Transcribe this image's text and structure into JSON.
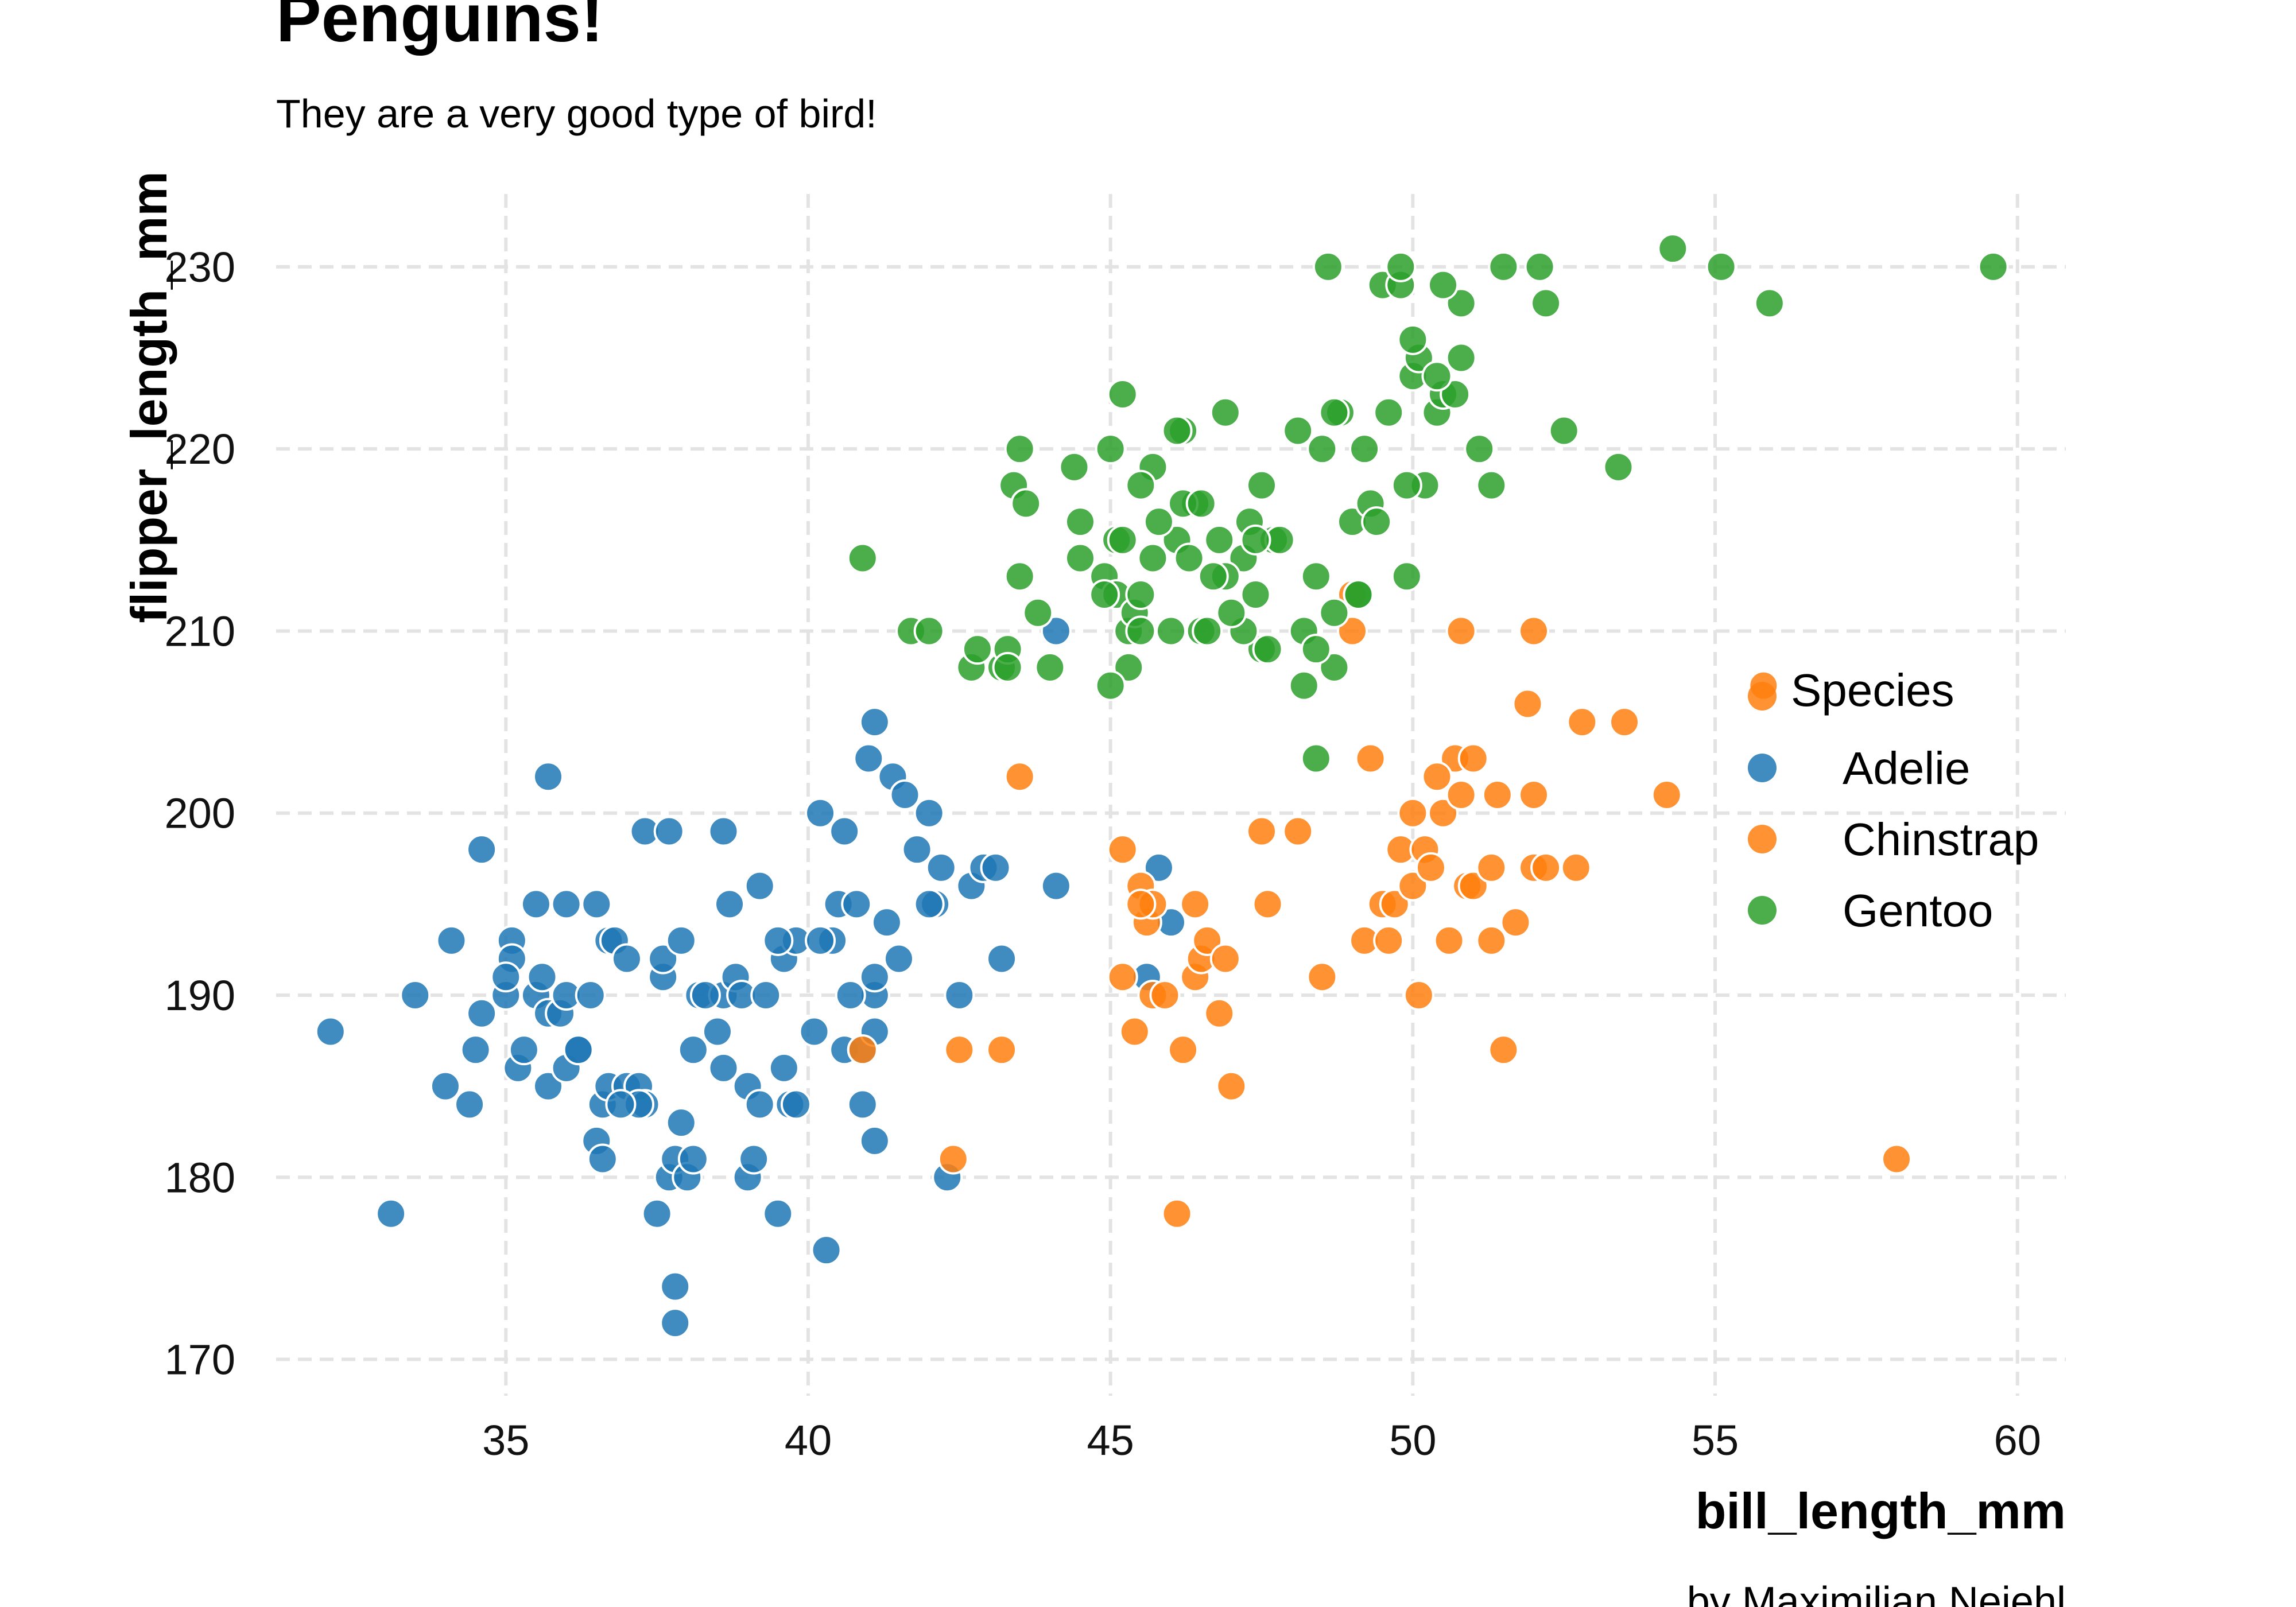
{
  "chart_data": {
    "type": "scatter",
    "title": "Penguins!",
    "subtitle": "They are a very good type of bird!",
    "caption": "by Maximilian Nejehl",
    "xlabel": "bill_length_mm",
    "ylabel": "flipper_length_mm",
    "xlim": [
      31.2,
      60.8
    ],
    "ylim": [
      168,
      234
    ],
    "xticks": [
      35,
      40,
      45,
      50,
      55,
      60
    ],
    "yticks": [
      170,
      180,
      190,
      200,
      210,
      220,
      230
    ],
    "grid": true,
    "legend": {
      "title": "Species",
      "position": "right"
    },
    "series": [
      {
        "name": "Adelie",
        "color": "#1f77b4",
        "points": [
          [
            32.1,
            188
          ],
          [
            33.1,
            178
          ],
          [
            33.5,
            190
          ],
          [
            34.0,
            185
          ],
          [
            34.1,
            193
          ],
          [
            34.4,
            184
          ],
          [
            34.5,
            187
          ],
          [
            34.6,
            189
          ],
          [
            34.6,
            198
          ],
          [
            35.0,
            190
          ],
          [
            35.1,
            193
          ],
          [
            35.1,
            192
          ],
          [
            35.2,
            186
          ],
          [
            35.3,
            187
          ],
          [
            35.5,
            195
          ],
          [
            35.5,
            190
          ],
          [
            35.6,
            191
          ],
          [
            35.7,
            185
          ],
          [
            35.7,
            202
          ],
          [
            35.7,
            189
          ],
          [
            35.9,
            189
          ],
          [
            36.0,
            195
          ],
          [
            36.0,
            190
          ],
          [
            36.0,
            186
          ],
          [
            36.2,
            187
          ],
          [
            36.2,
            187
          ],
          [
            36.4,
            190
          ],
          [
            36.5,
            195
          ],
          [
            36.5,
            182
          ],
          [
            36.6,
            181
          ],
          [
            36.6,
            184
          ],
          [
            36.7,
            185
          ],
          [
            36.7,
            193
          ],
          [
            36.8,
            193
          ],
          [
            37.0,
            185
          ],
          [
            37.2,
            185
          ],
          [
            37.3,
            199
          ],
          [
            37.3,
            184
          ],
          [
            37.6,
            191
          ],
          [
            37.6,
            192
          ],
          [
            37.5,
            178
          ],
          [
            37.7,
            199
          ],
          [
            37.7,
            180
          ],
          [
            37.8,
            174
          ],
          [
            37.8,
            181
          ],
          [
            37.8,
            172
          ],
          [
            37.9,
            193
          ],
          [
            38.0,
            180
          ],
          [
            38.1,
            181
          ],
          [
            38.1,
            187
          ],
          [
            38.2,
            190
          ],
          [
            38.6,
            190
          ],
          [
            38.6,
            199
          ],
          [
            38.7,
            195
          ],
          [
            38.8,
            191
          ],
          [
            38.9,
            190
          ],
          [
            39.0,
            185
          ],
          [
            39.0,
            180
          ],
          [
            39.1,
            181
          ],
          [
            39.2,
            196
          ],
          [
            39.3,
            190
          ],
          [
            39.5,
            178
          ],
          [
            39.6,
            186
          ],
          [
            39.7,
            184
          ],
          [
            39.8,
            184
          ],
          [
            40.1,
            188
          ],
          [
            40.2,
            200
          ],
          [
            40.3,
            176
          ],
          [
            40.5,
            195
          ],
          [
            40.6,
            199
          ],
          [
            40.6,
            187
          ],
          [
            40.8,
            195
          ],
          [
            40.9,
            187
          ],
          [
            40.9,
            184
          ],
          [
            41.0,
            203
          ],
          [
            41.1,
            190
          ],
          [
            41.1,
            182
          ],
          [
            41.1,
            188
          ],
          [
            41.1,
            205
          ],
          [
            41.3,
            194
          ],
          [
            41.4,
            202
          ],
          [
            41.5,
            192
          ],
          [
            41.6,
            201
          ],
          [
            41.8,
            198
          ],
          [
            42.0,
            200
          ],
          [
            42.1,
            195
          ],
          [
            42.2,
            197
          ],
          [
            42.3,
            180
          ],
          [
            42.5,
            190
          ],
          [
            42.7,
            196
          ],
          [
            42.9,
            197
          ],
          [
            43.1,
            197
          ],
          [
            43.2,
            192
          ],
          [
            44.1,
            196
          ],
          [
            44.1,
            210
          ],
          [
            45.6,
            191
          ],
          [
            45.8,
            197
          ],
          [
            46.0,
            194
          ],
          [
            37.2,
            184
          ],
          [
            38.5,
            188
          ],
          [
            39.2,
            184
          ],
          [
            40.4,
            193
          ],
          [
            36.9,
            184
          ],
          [
            38.6,
            186
          ],
          [
            37.9,
            183
          ],
          [
            40.7,
            190
          ],
          [
            41.1,
            191
          ],
          [
            42.0,
            195
          ],
          [
            37.0,
            192
          ],
          [
            39.6,
            192
          ],
          [
            35.0,
            191
          ],
          [
            39.8,
            193
          ],
          [
            40.2,
            193
          ],
          [
            38.3,
            190
          ],
          [
            39.5,
            193
          ]
        ]
      },
      {
        "name": "Chinstrap",
        "color": "#ff7f0e",
        "points": [
          [
            40.9,
            187
          ],
          [
            42.4,
            181
          ],
          [
            42.5,
            187
          ],
          [
            43.2,
            187
          ],
          [
            43.5,
            202
          ],
          [
            45.2,
            198
          ],
          [
            45.2,
            191
          ],
          [
            45.4,
            188
          ],
          [
            45.5,
            196
          ],
          [
            45.6,
            194
          ],
          [
            45.7,
            195
          ],
          [
            45.7,
            190
          ],
          [
            45.9,
            190
          ],
          [
            46.1,
            178
          ],
          [
            46.2,
            187
          ],
          [
            46.4,
            191
          ],
          [
            46.5,
            192
          ],
          [
            46.6,
            193
          ],
          [
            46.8,
            189
          ],
          [
            46.9,
            192
          ],
          [
            47.0,
            185
          ],
          [
            47.5,
            199
          ],
          [
            47.6,
            195
          ],
          [
            48.1,
            199
          ],
          [
            48.5,
            191
          ],
          [
            49.0,
            210
          ],
          [
            49.2,
            193
          ],
          [
            49.5,
            195
          ],
          [
            49.6,
            193
          ],
          [
            49.7,
            195
          ],
          [
            49.8,
            198
          ],
          [
            50.0,
            196
          ],
          [
            50.1,
            190
          ],
          [
            50.2,
            198
          ],
          [
            50.3,
            197
          ],
          [
            50.5,
            200
          ],
          [
            50.6,
            193
          ],
          [
            50.7,
            203
          ],
          [
            50.8,
            201
          ],
          [
            50.9,
            196
          ],
          [
            51.0,
            196
          ],
          [
            51.3,
            197
          ],
          [
            51.4,
            201
          ],
          [
            51.5,
            187
          ],
          [
            51.7,
            194
          ],
          [
            52.0,
            197
          ],
          [
            52.0,
            201
          ],
          [
            52.2,
            197
          ],
          [
            52.7,
            197
          ],
          [
            52.8,
            205
          ],
          [
            53.5,
            205
          ],
          [
            54.2,
            201
          ],
          [
            55.8,
            207
          ],
          [
            58.0,
            181
          ],
          [
            49.3,
            203
          ],
          [
            50.0,
            200
          ],
          [
            51.9,
            206
          ],
          [
            50.4,
            202
          ],
          [
            51.3,
            193
          ],
          [
            50.8,
            210
          ],
          [
            52.0,
            210
          ],
          [
            46.4,
            195
          ],
          [
            45.5,
            195
          ],
          [
            51.0,
            203
          ],
          [
            49.0,
            212
          ]
        ]
      },
      {
        "name": "Gentoo",
        "color": "#2ca02c",
        "points": [
          [
            40.9,
            214
          ],
          [
            41.7,
            210
          ],
          [
            42.0,
            210
          ],
          [
            42.7,
            208
          ],
          [
            42.8,
            209
          ],
          [
            43.2,
            208
          ],
          [
            43.3,
            209
          ],
          [
            43.3,
            208
          ],
          [
            43.4,
            218
          ],
          [
            43.5,
            213
          ],
          [
            43.5,
            220
          ],
          [
            43.6,
            217
          ],
          [
            44.4,
            219
          ],
          [
            44.5,
            214
          ],
          [
            44.5,
            216
          ],
          [
            44.9,
            213
          ],
          [
            45.0,
            220
          ],
          [
            45.1,
            215
          ],
          [
            45.1,
            212
          ],
          [
            45.2,
            215
          ],
          [
            45.3,
            210
          ],
          [
            45.4,
            211
          ],
          [
            45.5,
            210
          ],
          [
            45.5,
            212
          ],
          [
            45.7,
            214
          ],
          [
            46.1,
            215
          ],
          [
            46.2,
            221
          ],
          [
            46.4,
            217
          ],
          [
            46.5,
            210
          ],
          [
            46.6,
            210
          ],
          [
            46.8,
            215
          ],
          [
            46.9,
            222
          ],
          [
            47.2,
            214
          ],
          [
            47.3,
            216
          ],
          [
            47.4,
            212
          ],
          [
            47.5,
            218
          ],
          [
            47.7,
            215
          ],
          [
            47.8,
            215
          ],
          [
            48.2,
            210
          ],
          [
            48.4,
            213
          ],
          [
            48.5,
            220
          ],
          [
            48.6,
            230
          ],
          [
            48.7,
            208
          ],
          [
            48.8,
            222
          ],
          [
            49.0,
            216
          ],
          [
            49.1,
            212
          ],
          [
            49.2,
            220
          ],
          [
            49.3,
            217
          ],
          [
            49.4,
            216
          ],
          [
            49.5,
            229
          ],
          [
            49.6,
            222
          ],
          [
            49.8,
            229
          ],
          [
            49.9,
            213
          ],
          [
            50.0,
            224
          ],
          [
            50.1,
            225
          ],
          [
            50.2,
            218
          ],
          [
            50.4,
            222
          ],
          [
            50.5,
            223
          ],
          [
            50.7,
            223
          ],
          [
            50.8,
            228
          ],
          [
            51.1,
            220
          ],
          [
            51.3,
            218
          ],
          [
            51.5,
            230
          ],
          [
            52.1,
            230
          ],
          [
            52.2,
            228
          ],
          [
            52.5,
            221
          ],
          [
            53.4,
            219
          ],
          [
            54.3,
            231
          ],
          [
            55.1,
            230
          ],
          [
            55.9,
            228
          ],
          [
            59.6,
            230
          ],
          [
            45.2,
            223
          ],
          [
            46.2,
            217
          ],
          [
            48.1,
            221
          ],
          [
            49.8,
            230
          ],
          [
            50.4,
            224
          ],
          [
            50.8,
            225
          ],
          [
            44.9,
            212
          ],
          [
            45.3,
            208
          ],
          [
            47.5,
            209
          ],
          [
            48.4,
            209
          ],
          [
            46.3,
            214
          ],
          [
            46.9,
            213
          ],
          [
            47.2,
            210
          ],
          [
            45.8,
            216
          ],
          [
            46.5,
            217
          ],
          [
            48.7,
            211
          ],
          [
            48.2,
            207
          ],
          [
            45.7,
            219
          ],
          [
            46.1,
            221
          ],
          [
            49.9,
            218
          ],
          [
            50.0,
            226
          ],
          [
            50.5,
            229
          ],
          [
            47.4,
            215
          ],
          [
            45.0,
            207
          ],
          [
            48.7,
            222
          ],
          [
            49.1,
            212
          ],
          [
            47.0,
            211
          ],
          [
            46.0,
            210
          ],
          [
            46.7,
            213
          ],
          [
            48.4,
            203
          ],
          [
            44.0,
            208
          ],
          [
            47.6,
            209
          ],
          [
            43.8,
            211
          ],
          [
            45.5,
            218
          ]
        ]
      }
    ]
  }
}
